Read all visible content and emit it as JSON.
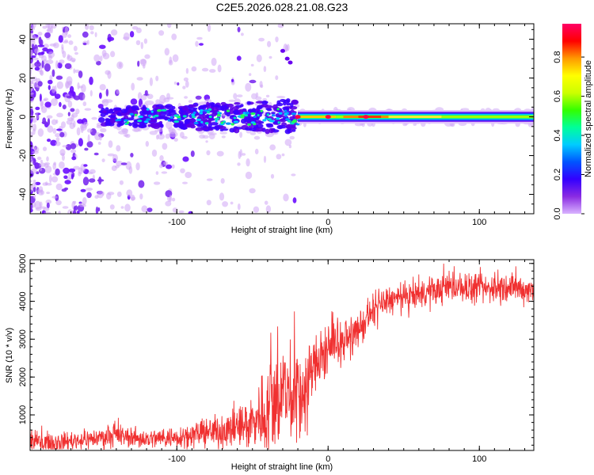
{
  "title": "C2E5.2026.028.21.08.G23",
  "chart_data": [
    {
      "type": "heatmap",
      "xlabel": "Height of straight line (km)",
      "ylabel": "Frequency (Hz)",
      "xlim": [
        -197,
        136
      ],
      "ylim": [
        -50,
        48
      ],
      "xticks": [
        -100,
        0,
        100
      ],
      "yticks": [
        -40,
        -20,
        0,
        20,
        40
      ],
      "colorbar": {
        "label": "Normalized spectral amplitude",
        "range": [
          0,
          0.97
        ],
        "ticks": [
          0.0,
          0.2,
          0.4,
          0.6,
          0.8
        ],
        "tick_labels": [
          "0.0",
          "0.2",
          "0.4",
          "0.6",
          "0.8"
        ],
        "colormap": [
          "#d9b3ff",
          "#8a2be2",
          "#3300ff",
          "#0055ff",
          "#00ccff",
          "#00ff99",
          "#33ff00",
          "#ccff00",
          "#ffff00",
          "#ff9900",
          "#ff0000",
          "#ff0066"
        ]
      },
      "features": {
        "ridge_frequency_hz": 0,
        "ridge_start_km": -150,
        "strong_peaks_km": [
          -20,
          0,
          25
        ],
        "outlier_points": [
          {
            "x": -27,
            "y": 30
          },
          {
            "x": -25,
            "y": 28
          },
          {
            "x": -30,
            "y": 34
          }
        ]
      }
    },
    {
      "type": "line",
      "xlabel": "Height of straight line (km)",
      "ylabel": "SNR (10 * v/v)",
      "xlim": [
        -197,
        136
      ],
      "ylim": [
        60,
        5100
      ],
      "xticks": [
        -100,
        0,
        100
      ],
      "yticks": [
        1000,
        2000,
        3000,
        4000,
        5000
      ],
      "series": [
        {
          "name": "SNR",
          "color": "#f03030",
          "x": [
            -197,
            -180,
            -160,
            -140,
            -120,
            -100,
            -80,
            -60,
            -50,
            -40,
            -30,
            -20,
            -15,
            -10,
            -5,
            0,
            5,
            10,
            15,
            20,
            25,
            30,
            40,
            50,
            60,
            70,
            80,
            90,
            100,
            110,
            120,
            136
          ],
          "mean": [
            300,
            280,
            350,
            450,
            360,
            420,
            530,
            640,
            820,
            1150,
            1600,
            1500,
            1550,
            2300,
            2450,
            2600,
            3000,
            2900,
            3050,
            3250,
            3450,
            3750,
            4050,
            4050,
            4200,
            4250,
            4400,
            4350,
            4300,
            4350,
            4350,
            4300
          ],
          "spread": [
            220,
            220,
            230,
            260,
            230,
            260,
            330,
            480,
            700,
            1100,
            1300,
            1200,
            1100,
            700,
            650,
            600,
            550,
            450,
            450,
            400,
            450,
            380,
            350,
            350,
            350,
            350,
            350,
            350,
            350,
            350,
            350,
            350
          ]
        }
      ]
    }
  ]
}
